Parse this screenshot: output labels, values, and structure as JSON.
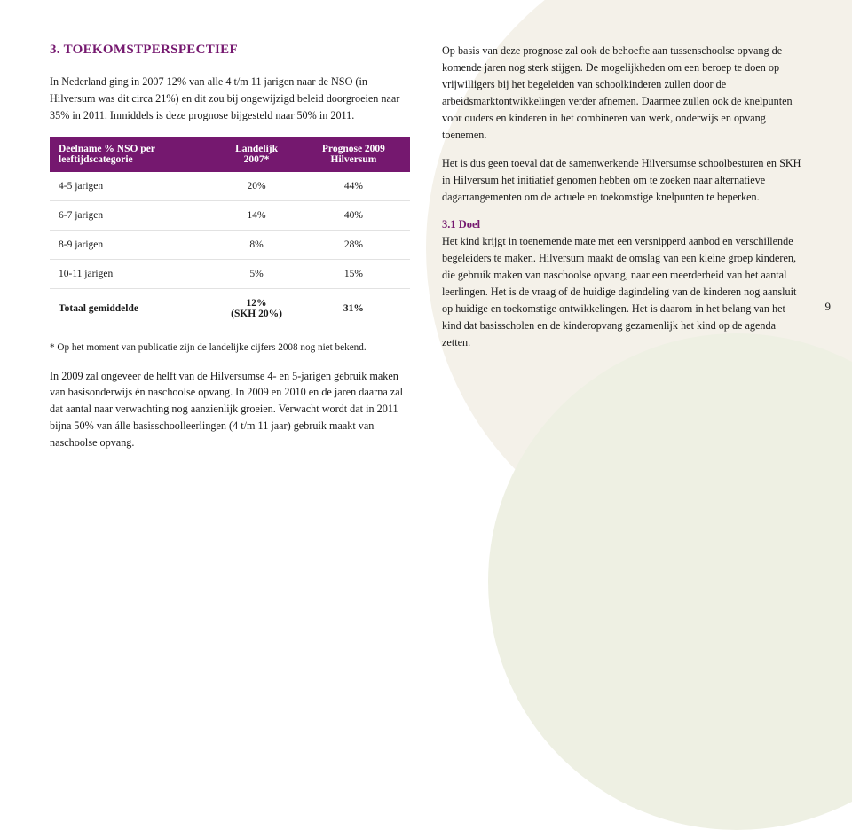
{
  "colors": {
    "heading": "#75186f",
    "table_header_bg": "#75186f",
    "subheading": "#75186f",
    "text": "#1a1a1a",
    "bg_shape1": "#f4f1e9",
    "bg_shape2": "#eef0e3",
    "page": "#ffffff"
  },
  "page_number": "9",
  "left": {
    "heading": "3. TOEKOMSTPERSPECTIEF",
    "intro": "In Nederland ging in 2007 12% van alle 4 t/m 11 jarigen naar de NSO (in Hilversum was dit circa 21%) en dit zou bij ongewijzigd beleid doorgroeien naar 35% in 2011. Inmiddels is deze prognose bijgesteld naar 50% in 2011.",
    "table": {
      "headers": [
        "Deelname % NSO per leeftijdscategorie",
        "Landelijk 2007*",
        "Prognose 2009 Hilversum"
      ],
      "rows": [
        {
          "cells": [
            "4-5 jarigen",
            "20%",
            "44%"
          ],
          "bold": false
        },
        {
          "cells": [
            "6-7 jarigen",
            "14%",
            "40%"
          ],
          "bold": false
        },
        {
          "cells": [
            "8-9 jarigen",
            "8%",
            "28%"
          ],
          "bold": false
        },
        {
          "cells": [
            "10-11 jarigen",
            "5%",
            "15%"
          ],
          "bold": false
        },
        {
          "cells": [
            "Totaal gemiddelde",
            "12%\n(SKH 20%)",
            "31%"
          ],
          "bold": true
        }
      ]
    },
    "footnote": "* Op het moment van publicatie zijn de landelijke cijfers 2008 nog niet bekend.",
    "para2": "In 2009 zal ongeveer de helft van de Hilversumse 4- en 5-jarigen gebruik maken van basisonderwijs én naschoolse opvang. In 2009 en 2010 en de jaren daarna zal dat aantal naar verwachting nog aanzienlijk groeien. Verwacht wordt dat in 2011 bijna 50% van álle basisschoolleerlingen (4 t/m 11 jaar) gebruik maakt van naschoolse opvang."
  },
  "right": {
    "para1": "Op basis van deze prognose zal ook de behoefte aan tussenschoolse opvang de komende jaren nog sterk stijgen. De mogelijkheden om een beroep te doen op vrijwilligers bij het begeleiden van schoolkinderen zullen door de arbeidsmarktontwikkelingen verder afnemen. Daarmee zullen ook de knelpunten voor ouders en kinderen in het combineren van werk, onderwijs en opvang toenemen.",
    "para2": "Het is dus geen toeval dat de samenwerkende Hilversumse schoolbesturen en SKH in Hilversum het initiatief genomen hebben om te zoeken naar alternatieve dagarrangementen om de actuele en toekomstige knelpunten te beperken.",
    "subheading": "3.1 Doel",
    "para3": "Het kind krijgt in toenemende mate met een versnipperd aanbod en verschillende begeleiders te maken. Hilversum maakt de omslag van een kleine groep kinderen, die gebruik maken van naschoolse opvang, naar een meerderheid van het aantal leerlingen. Het is de vraag of de huidige dagindeling van de kinderen nog aansluit op huidige en toekomstige ontwikkelingen. Het is daarom in het belang van het kind dat basisscholen en de kinderopvang gezamenlijk het kind op de agenda zetten."
  }
}
